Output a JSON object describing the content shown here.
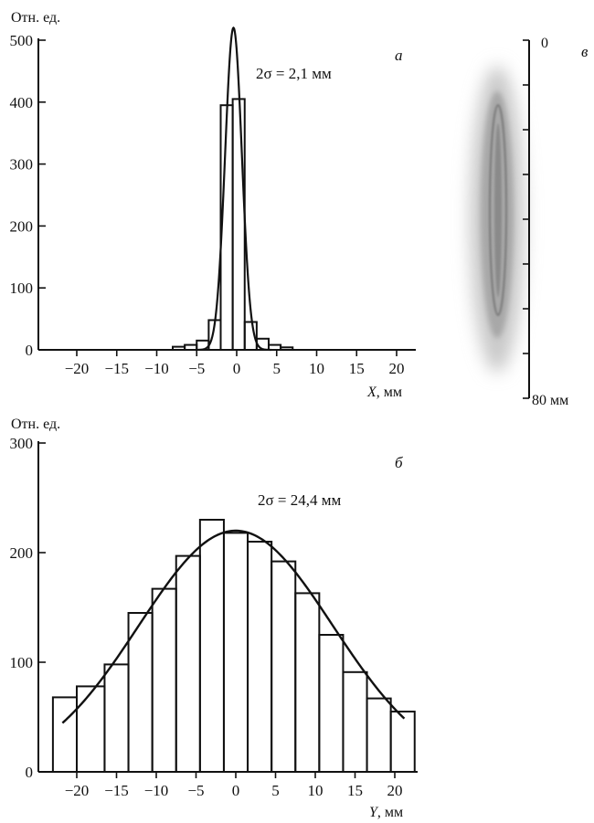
{
  "chart_data": [
    {
      "panel": "а",
      "type": "bar",
      "ylabel": "Отн. ед.",
      "xlabel_var": "X",
      "xlabel_unit": ", мм",
      "annotation": "2σ = 2,1 мм",
      "xlim": [
        -23,
        23
      ],
      "ylim": [
        0,
        500
      ],
      "xticks": [
        -20,
        -15,
        -10,
        -5,
        0,
        5,
        10,
        15,
        20
      ],
      "xtick_labels": [
        "−20",
        "−15",
        "−10",
        "−5",
        "0",
        "5",
        "10",
        "15",
        "20"
      ],
      "yticks": [
        0,
        100,
        200,
        300,
        400,
        500
      ],
      "bar_edges": [
        -8,
        -6.5,
        -5,
        -3.5,
        -2,
        -0.5,
        1,
        2.5,
        4,
        5.5,
        7
      ],
      "values": [
        5,
        8,
        15,
        48,
        395,
        405,
        45,
        18,
        8,
        4
      ],
      "fit_curve": {
        "type": "gaussian",
        "peak": 520,
        "center": -0.4,
        "sigma": 1.05
      }
    },
    {
      "panel": "б",
      "type": "bar",
      "ylabel": "Отн. ед.",
      "xlabel_var": "Y",
      "xlabel_unit": ", мм",
      "annotation": "2σ = 24,4 мм",
      "xlim": [
        -23,
        23
      ],
      "ylim": [
        0,
        300
      ],
      "xticks": [
        -20,
        -15,
        -10,
        -5,
        0,
        5,
        10,
        15,
        20
      ],
      "xtick_labels": [
        "−20",
        "−15",
        "−10",
        "−5",
        "0",
        "5",
        "10",
        "15",
        "20"
      ],
      "yticks": [
        0,
        100,
        200,
        300
      ],
      "bar_edges": [
        -23,
        -20,
        -16.5,
        -13.5,
        -10.5,
        -7.5,
        -4.5,
        -1.5,
        1.5,
        4.5,
        7.5,
        10.5,
        13.5,
        16.5,
        19.5,
        22.5
      ],
      "values": [
        68,
        78,
        98,
        145,
        167,
        197,
        230,
        218,
        210,
        192,
        163,
        125,
        91,
        67,
        55
      ],
      "fit_curve": {
        "type": "gaussian",
        "peak": 220,
        "center": 0,
        "sigma": 12.2,
        "x_range": [
          -21.8,
          21.2
        ]
      }
    }
  ],
  "panel_v": {
    "label": "в",
    "scale_top": "0",
    "scale_bottom": "80 мм"
  }
}
